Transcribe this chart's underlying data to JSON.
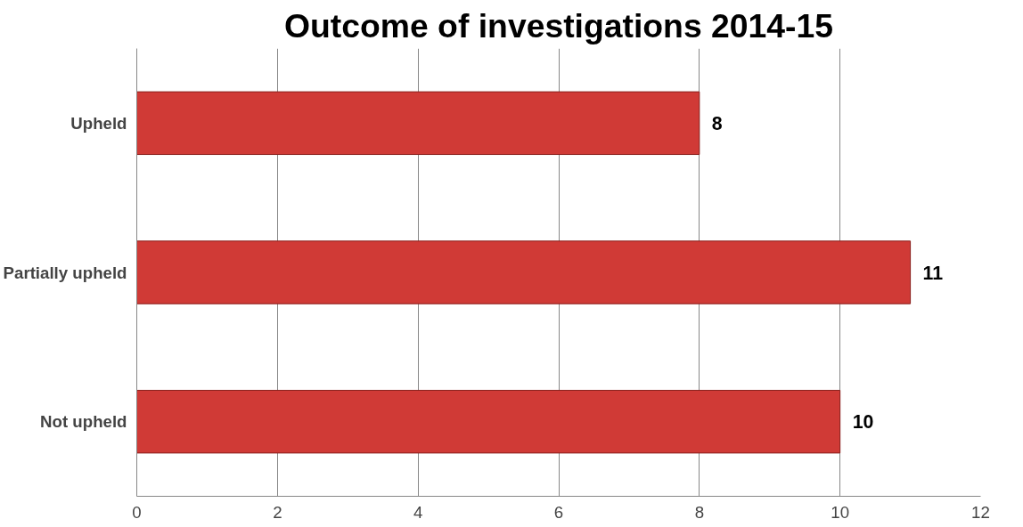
{
  "chart_data": {
    "type": "bar",
    "orientation": "horizontal",
    "title": "Outcome of investigations 2014-15",
    "categories": [
      "Upheld",
      "Partially upheld",
      "Not upheld"
    ],
    "values": [
      8,
      11,
      10
    ],
    "color": "#d03a36",
    "xlim": [
      0,
      12
    ],
    "xticks": [
      0,
      2,
      4,
      6,
      8,
      10,
      12
    ],
    "grid": "x",
    "data_labels": true
  }
}
